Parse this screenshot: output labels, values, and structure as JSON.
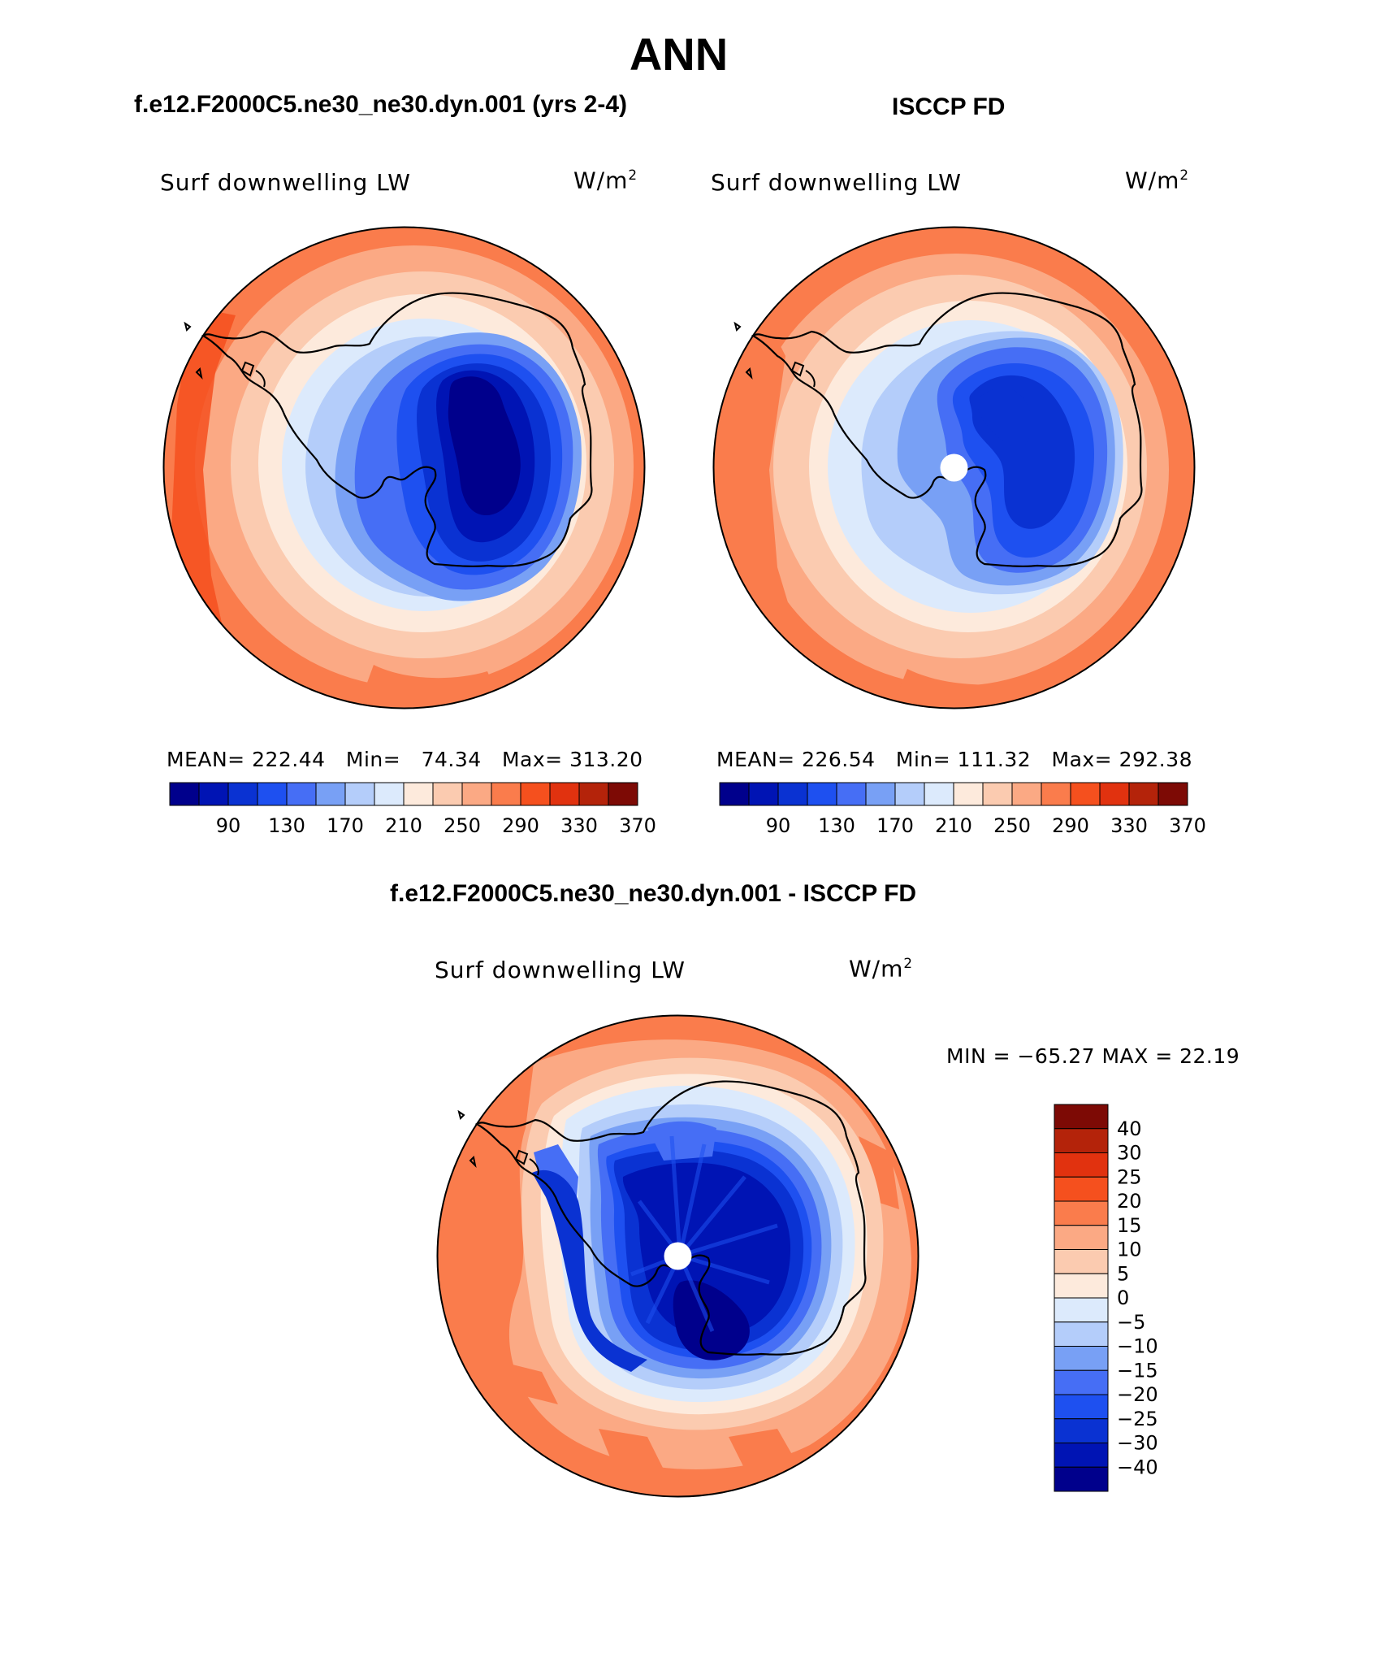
{
  "page": {
    "title": "ANN",
    "diff_title": "f.e12.F2000C5.ne30_ne30.dyn.001 - ISCCP FD"
  },
  "panels": [
    {
      "case_title": "f.e12.F2000C5.ne30_ne30.dyn.001 (yrs 2-4)",
      "variable": "Surf downwelling LW",
      "units_base": "W/m",
      "units_exp": "2",
      "stats": {
        "mean_label": "MEAN=",
        "mean": "222.44",
        "min_label": "Min=",
        "min": "74.34",
        "max_label": "Max=",
        "max": "313.20"
      },
      "pole_hole": false
    },
    {
      "case_title": "ISCCP FD",
      "variable": "Surf downwelling LW",
      "units_base": "W/m",
      "units_exp": "2",
      "stats": {
        "mean_label": "MEAN=",
        "mean": "226.54",
        "min_label": "Min=",
        "min": "111.32",
        "max_label": "Max=",
        "max": "292.38"
      },
      "pole_hole": true
    },
    {
      "variable": "Surf downwelling LW",
      "units_base": "W/m",
      "units_exp": "2",
      "minmax": "MIN = −65.27 MAX =   22.19",
      "pole_hole": true
    }
  ],
  "abs_colorbar": {
    "tick_labels": [
      "90",
      "130",
      "170",
      "210",
      "250",
      "290",
      "330",
      "370"
    ],
    "colors": [
      "#00008c",
      "#0014b4",
      "#0a32d2",
      "#1e50f0",
      "#466ef5",
      "#78a0f5",
      "#b4cdfa",
      "#dceafc",
      "#fdeadc",
      "#fbcbb0",
      "#fba984",
      "#fa7c4c",
      "#f5501e",
      "#e1320f",
      "#b4230a",
      "#7d0a05"
    ]
  },
  "diff_colorbar": {
    "tick_labels": [
      "40",
      "30",
      "25",
      "20",
      "15",
      "10",
      "5",
      "0",
      "−5",
      "−10",
      "−15",
      "−20",
      "−25",
      "−30",
      "−40"
    ],
    "colors_top_to_bottom": [
      "#7d0a05",
      "#b4230a",
      "#e1320f",
      "#f5501e",
      "#fa7c4c",
      "#fba984",
      "#fbcbb0",
      "#fdeadc",
      "#dceafc",
      "#b4cdfa",
      "#78a0f5",
      "#466ef5",
      "#1e50f0",
      "#0a32d2",
      "#0014b4",
      "#00008c"
    ]
  }
}
